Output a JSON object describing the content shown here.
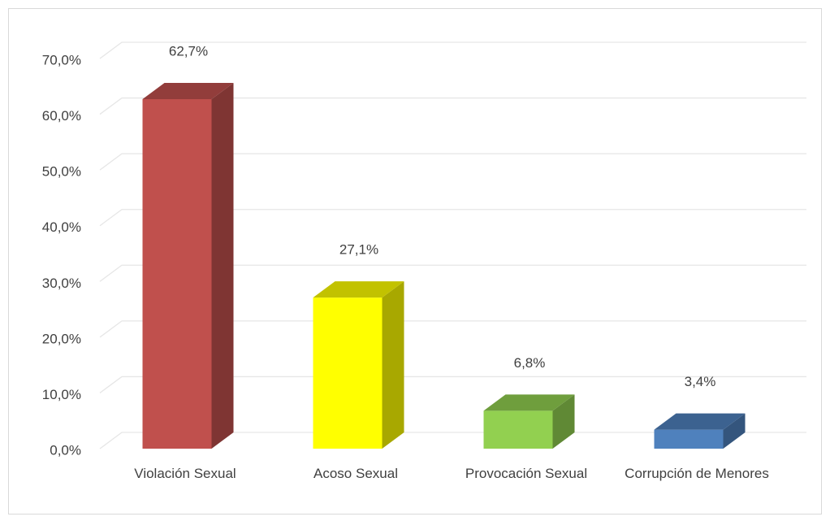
{
  "chart_data": {
    "type": "bar3d",
    "categories": [
      "Violación Sexual",
      "Acoso Sexual",
      "Provocación Sexual",
      "Corrupción de Menores"
    ],
    "values": [
      62.7,
      27.1,
      6.8,
      3.4
    ],
    "value_labels": [
      "62,7%",
      "27,1%",
      "6,8%",
      "3,4%"
    ],
    "colors": [
      "#c0504d",
      "#ffff00",
      "#92d050",
      "#4f81bd"
    ],
    "ylim": [
      0,
      70
    ],
    "yticks": [
      {
        "value": 0,
        "label": "0,0%"
      },
      {
        "value": 10,
        "label": "10,0%"
      },
      {
        "value": 20,
        "label": "20,0%"
      },
      {
        "value": 30,
        "label": "30,0%"
      },
      {
        "value": 40,
        "label": "40,0%"
      },
      {
        "value": 50,
        "label": "50,0%"
      },
      {
        "value": 60,
        "label": "60,0%"
      },
      {
        "value": 70,
        "label": "70,0%"
      }
    ],
    "grid": true
  }
}
